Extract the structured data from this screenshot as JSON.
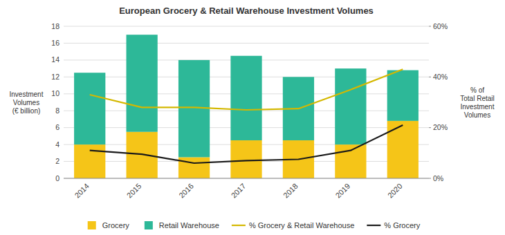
{
  "chart_data": {
    "type": "bar",
    "title": "European Grocery & Retail Warehouse Investment Volumes",
    "categories": [
      "2014",
      "2015",
      "2016",
      "2017",
      "2018",
      "2019",
      "2020"
    ],
    "ylabel": "Investment\nVolumes\n(€ billion)",
    "y2label": "% of\nTotal Retail\nInvestment\nVolumes",
    "stacked": true,
    "series": [
      {
        "name": "Grocery",
        "color": "#F5C518",
        "values": [
          4.0,
          5.5,
          2.5,
          4.5,
          4.5,
          4.0,
          6.8
        ]
      },
      {
        "name": "Retail Warehouse",
        "color": "#2DB898",
        "values": [
          8.5,
          11.5,
          11.5,
          10.0,
          7.5,
          9.0,
          6.0
        ]
      },
      {
        "name": "% Grocery & Retail Warehouse",
        "type": "line",
        "axis": "y2",
        "color": "#D4B800",
        "values": [
          33.0,
          28.0,
          28.0,
          27.0,
          27.5,
          35.0,
          43.0
        ]
      },
      {
        "name": "% Grocery",
        "type": "line",
        "axis": "y2",
        "color": "#1a1a1a",
        "values": [
          11.0,
          9.5,
          6.0,
          7.0,
          7.5,
          11.0,
          21.0
        ]
      }
    ],
    "ylim": [
      0,
      18
    ],
    "yticks": [
      0,
      2,
      4,
      6,
      8,
      10,
      12,
      14,
      16,
      18
    ],
    "y2lim": [
      0,
      60
    ],
    "y2ticks": [
      {
        "value": 0,
        "label": "0%"
      },
      {
        "value": 20,
        "label": "20%"
      },
      {
        "value": 40,
        "label": "40%"
      },
      {
        "value": 60,
        "label": "60%"
      }
    ],
    "grid": true,
    "legend": "bottom"
  }
}
